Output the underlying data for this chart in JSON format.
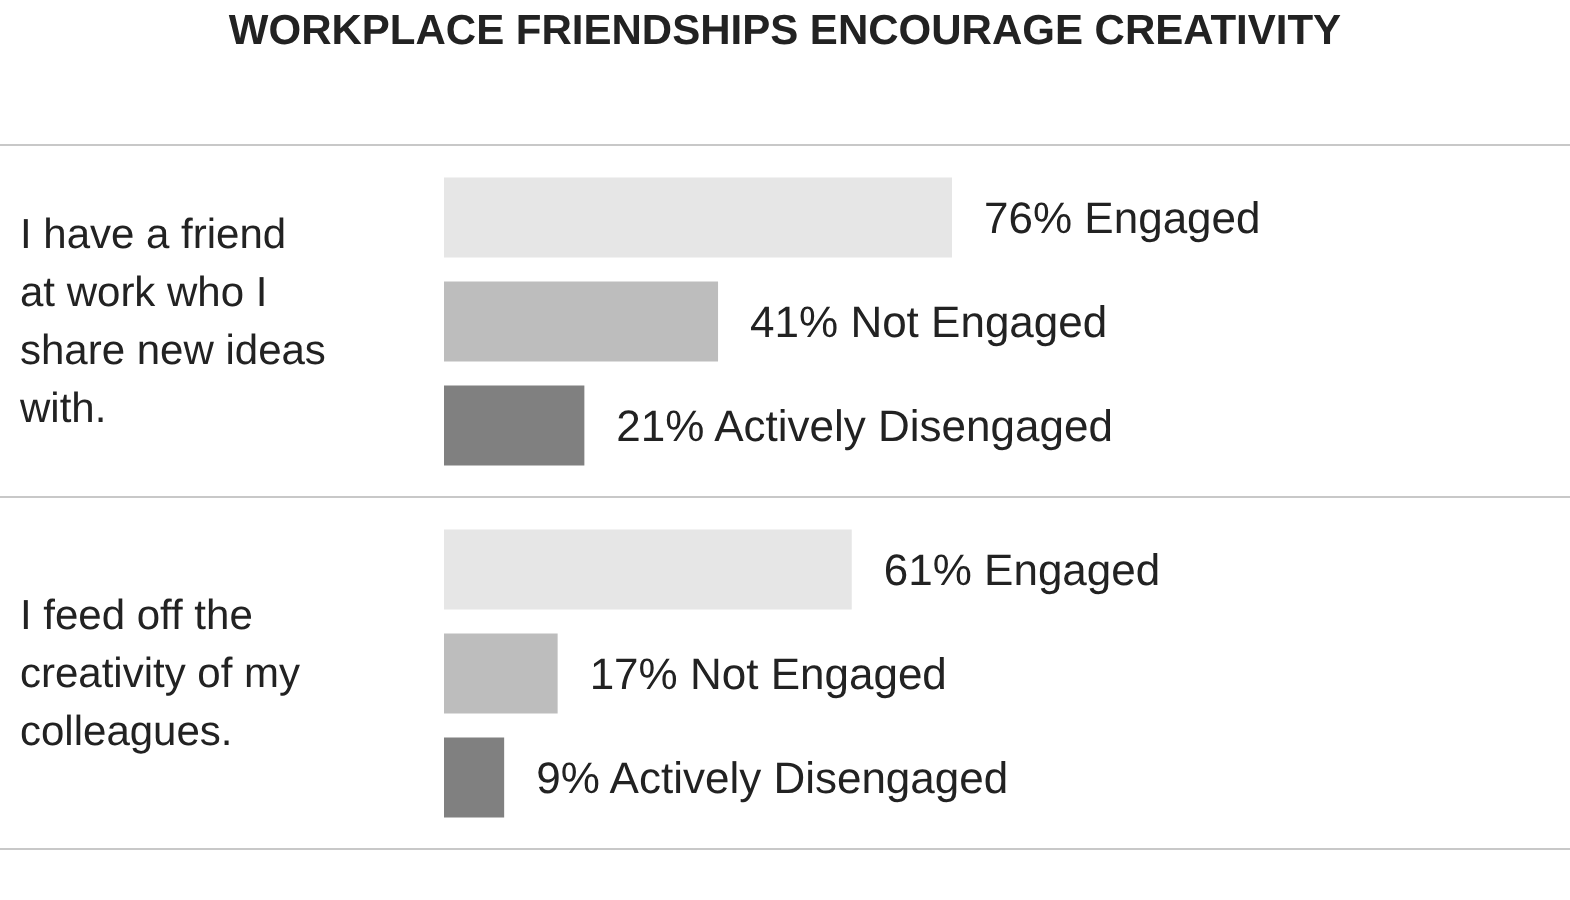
{
  "chart_data": [
    {
      "type": "bar",
      "orientation": "horizontal",
      "title": "WORKPLACE FRIENDSHIPS ENCOURAGE CREATIVITY",
      "categories": [
        "I have a friend at work who I share new ideas with."
      ],
      "series": [
        {
          "name": "Engaged",
          "color": "#e6e6e6",
          "values": [
            76
          ],
          "value_labels": [
            "76%"
          ]
        },
        {
          "name": "Not Engaged",
          "color": "#bdbdbd",
          "values": [
            41
          ],
          "value_labels": [
            "41%"
          ]
        },
        {
          "name": "Actively Disengaged",
          "color": "#808080",
          "values": [
            21
          ],
          "value_labels": [
            "21%"
          ]
        }
      ]
    },
    {
      "type": "bar",
      "orientation": "horizontal",
      "categories": [
        "I feed off the creativity of my colleagues."
      ],
      "series": [
        {
          "name": "Engaged",
          "color": "#e6e6e6",
          "values": [
            61
          ],
          "value_labels": [
            "61%"
          ]
        },
        {
          "name": "Not Engaged",
          "color": "#bdbdbd",
          "values": [
            17
          ],
          "value_labels": [
            "17%"
          ]
        },
        {
          "name": "Actively Disengaged",
          "color": "#808080",
          "values": [
            9
          ],
          "value_labels": [
            "9%"
          ]
        }
      ]
    }
  ]
}
